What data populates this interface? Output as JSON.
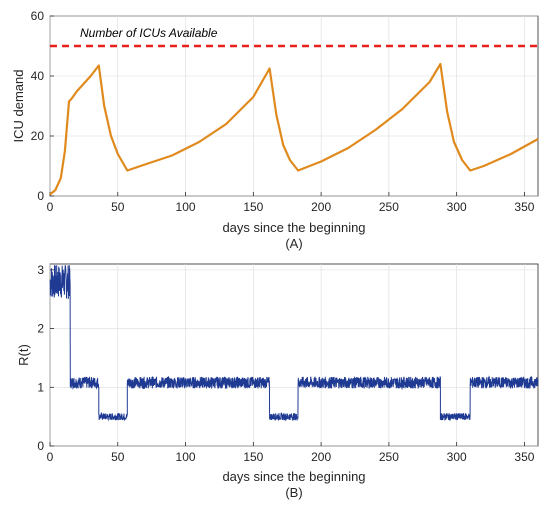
{
  "chart_data": [
    {
      "type": "line",
      "panel_label": "(A)",
      "xlabel": "days since the beginning",
      "ylabel": "ICU demand",
      "xlim": [
        0,
        360
      ],
      "ylim": [
        0,
        60
      ],
      "xticks": [
        0,
        50,
        100,
        150,
        200,
        250,
        300,
        350
      ],
      "yticks": [
        0,
        20,
        40,
        60
      ],
      "grid": true,
      "annotation": "Number of ICUs Available",
      "colors": {
        "demand": "#E08A1E",
        "capacity": "#E8201C"
      },
      "capacity": 50,
      "x": [
        0,
        4,
        8,
        11,
        14,
        16,
        20,
        25,
        30,
        36,
        40,
        45,
        50,
        57,
        70,
        90,
        110,
        130,
        150,
        162,
        167,
        172,
        177,
        183,
        200,
        220,
        240,
        260,
        280,
        288,
        293,
        298,
        304,
        310,
        320,
        340,
        360
      ],
      "y": [
        0.5,
        2,
        6,
        15,
        31.5,
        32.5,
        35,
        37.5,
        40,
        43.5,
        30,
        20,
        14,
        8.5,
        10.5,
        13.5,
        18,
        24,
        33,
        42.5,
        27,
        17,
        12,
        8.5,
        11.5,
        16,
        22,
        29,
        38,
        44,
        28,
        18,
        12,
        8.5,
        10,
        14,
        19
      ]
    },
    {
      "type": "line",
      "panel_label": "(B)",
      "xlabel": "days since the beginning",
      "ylabel": "R(t)",
      "xlim": [
        0,
        360
      ],
      "ylim": [
        0,
        3.1
      ],
      "xticks": [
        0,
        50,
        100,
        150,
        200,
        250,
        300,
        350
      ],
      "yticks": [
        0,
        1,
        2,
        3
      ],
      "grid": true,
      "colors": {
        "rt": "#1F3A93"
      },
      "segments": [
        {
          "x": [
            0,
            15
          ],
          "mean": 2.8,
          "noise": 0.3
        },
        {
          "x": [
            15,
            36
          ],
          "mean": 1.08,
          "noise": 0.1
        },
        {
          "x": [
            36,
            57
          ],
          "mean": 0.5,
          "noise": 0.06
        },
        {
          "x": [
            57,
            162
          ],
          "mean": 1.08,
          "noise": 0.1
        },
        {
          "x": [
            162,
            183
          ],
          "mean": 0.5,
          "noise": 0.06
        },
        {
          "x": [
            183,
            288
          ],
          "mean": 1.08,
          "noise": 0.1
        },
        {
          "x": [
            288,
            310
          ],
          "mean": 0.5,
          "noise": 0.06
        },
        {
          "x": [
            310,
            360
          ],
          "mean": 1.08,
          "noise": 0.1
        }
      ]
    }
  ]
}
